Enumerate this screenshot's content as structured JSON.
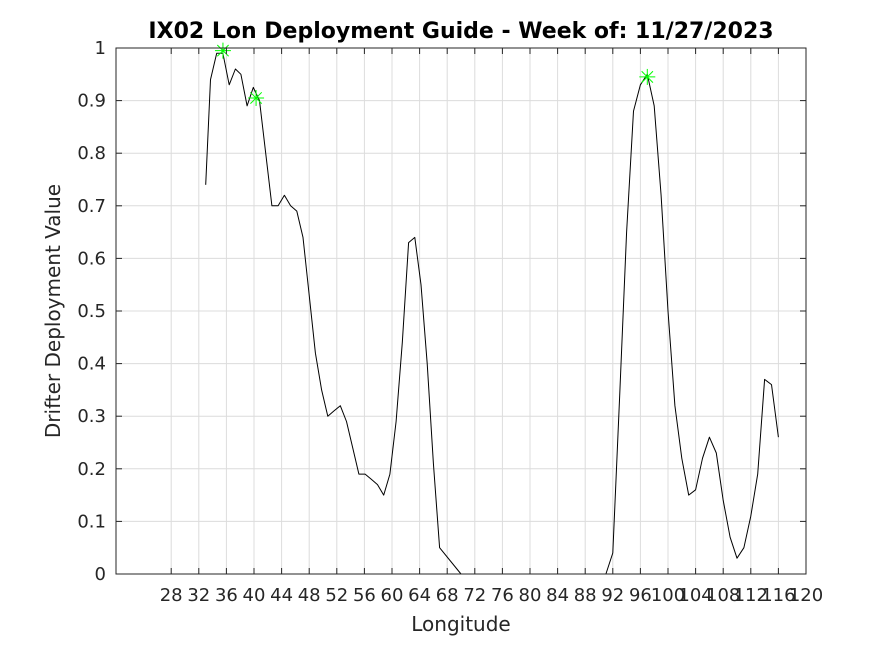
{
  "chart_data": {
    "type": "line",
    "title": "IX02 Lon Deployment Guide - Week of: 11/27/2023",
    "xlabel": "Longitude",
    "ylabel": "Drifter Deployment Value",
    "xlim": [
      20,
      120
    ],
    "ylim": [
      0,
      1
    ],
    "xticks": [
      28,
      32,
      36,
      40,
      44,
      48,
      52,
      56,
      60,
      64,
      68,
      72,
      76,
      80,
      84,
      88,
      92,
      96,
      100,
      104,
      108,
      112,
      116,
      120
    ],
    "yticks": [
      0,
      0.1,
      0.2,
      0.3,
      0.4,
      0.5,
      0.6,
      0.7,
      0.8,
      0.9,
      1
    ],
    "ytick_labels": [
      "0",
      "0.1",
      "0.2",
      "0.3",
      "0.4",
      "0.5",
      "0.6",
      "0.7",
      "0.8",
      "0.9",
      "1"
    ],
    "grid": true,
    "series": [
      {
        "color": "#000000",
        "x": [
          33,
          33.7,
          34.6,
          35.5,
          36.4,
          37.3,
          38.1,
          39,
          39.9,
          40.8,
          41.7,
          42.6,
          43.5,
          44.4,
          45.3,
          46.2,
          47.1,
          48,
          48.9,
          49.8,
          50.7,
          51.6,
          52.5,
          53.4,
          54.3,
          55.2,
          56.1,
          57,
          57.9,
          58.8,
          59.7,
          60.6,
          61.5,
          62.4,
          63.3,
          64.2,
          65.1,
          66,
          66.9,
          70,
          80,
          91,
          92,
          93,
          94,
          95,
          96,
          97,
          98,
          99,
          100,
          101,
          102,
          103,
          104,
          105,
          106,
          107,
          108,
          109,
          110,
          111,
          112,
          113,
          114,
          115,
          116
        ],
        "y": [
          0.74,
          0.94,
          0.99,
          0.99,
          0.93,
          0.96,
          0.95,
          0.89,
          0.925,
          0.9,
          0.8,
          0.7,
          0.7,
          0.72,
          0.7,
          0.69,
          0.64,
          0.53,
          0.42,
          0.35,
          0.3,
          0.31,
          0.32,
          0.29,
          0.24,
          0.19,
          0.19,
          0.18,
          0.17,
          0.15,
          0.19,
          0.29,
          0.44,
          0.63,
          0.64,
          0.55,
          0.4,
          0.21,
          0.05,
          0,
          0,
          0,
          0.04,
          0.34,
          0.65,
          0.88,
          0.93,
          0.95,
          0.89,
          0.72,
          0.5,
          0.32,
          0.22,
          0.15,
          0.16,
          0.22,
          0.26,
          0.23,
          0.14,
          0.07,
          0.03,
          0.05,
          0.11,
          0.19,
          0.37,
          0.36,
          0.26
        ]
      },
      {
        "color": "#00ff00",
        "marker": "asterisk",
        "x": [
          35.5,
          40.3,
          97
        ],
        "y": [
          0.995,
          0.905,
          0.945
        ]
      }
    ]
  }
}
